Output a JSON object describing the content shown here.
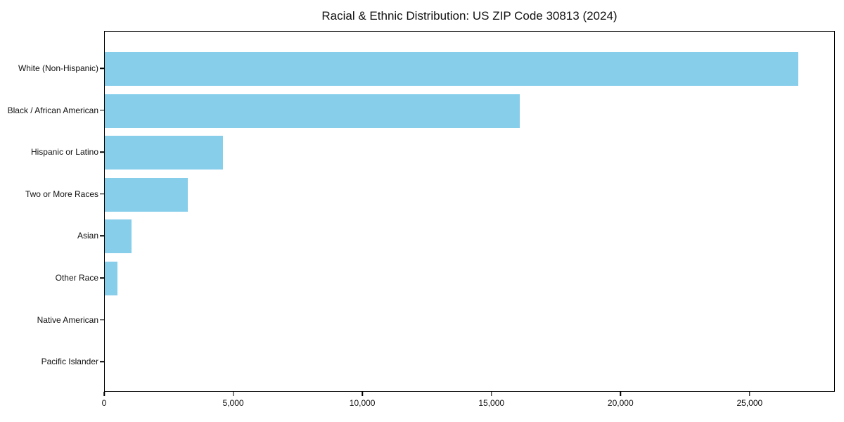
{
  "figure": {
    "title": "Racial & Ethnic Distribution: US ZIP Code 30813 (2024)"
  },
  "chart_data": {
    "type": "bar",
    "orientation": "horizontal",
    "title": "Racial & Ethnic Distribution: US ZIP Code 30813 (2024)",
    "categories": [
      "White (Non-Hispanic)",
      "Black / African American",
      "Hispanic or Latino",
      "Two or More Races",
      "Asian",
      "Other Race",
      "Native American",
      "Pacific Islander"
    ],
    "values": [
      26900,
      16100,
      4590,
      3230,
      1050,
      480,
      0,
      0
    ],
    "xlabel": "",
    "ylabel": "",
    "xlim": [
      0,
      28300
    ],
    "xticks": [
      0,
      5000,
      10000,
      15000,
      20000,
      25000
    ],
    "xtick_labels": [
      "0",
      "5,000",
      "10,000",
      "15,000",
      "20,000",
      "25,000"
    ],
    "bar_color": "#87CEEB",
    "axis_color": "#000000",
    "background": "#FFFFFF",
    "grid": false,
    "legend": null
  }
}
